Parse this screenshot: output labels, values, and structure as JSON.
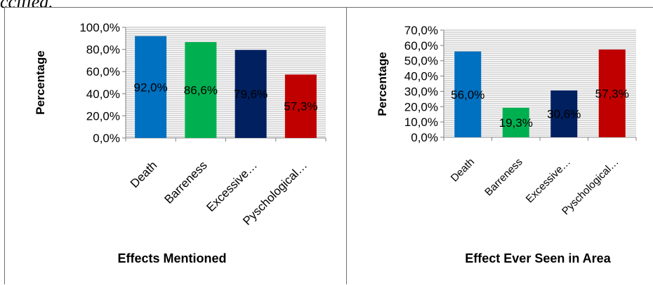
{
  "top_text": "ccified.",
  "chart_data": [
    {
      "type": "bar",
      "title": "",
      "xlabel": "Effects Mentioned",
      "ylabel": "Percentage",
      "categories": [
        "Death",
        "Barreness",
        "Excessive…",
        "Pyschological…"
      ],
      "values": [
        92.0,
        86.6,
        79.6,
        57.3
      ],
      "data_labels": [
        "92,0%",
        "86,6%",
        "79,6%",
        "57,3%"
      ],
      "bar_colors": [
        "#0070c0",
        "#00b050",
        "#002060",
        "#c00000"
      ],
      "ylim": [
        0,
        100
      ],
      "y_ticks": [
        0,
        20,
        40,
        60,
        80,
        100
      ],
      "y_tick_labels": [
        "0,0%",
        "20,0%",
        "40,0%",
        "60,0%",
        "80,0%",
        "100,0%"
      ],
      "grid": true,
      "legend": "none"
    },
    {
      "type": "bar",
      "title": "",
      "xlabel": "Effect Ever Seen in Area",
      "ylabel": "Percentage",
      "categories": [
        "Death",
        "Barreness",
        "Excessive…",
        "Pyschological…"
      ],
      "values": [
        56.0,
        19.3,
        30.6,
        57.3
      ],
      "data_labels": [
        "56,0%",
        "19,3%",
        "30,6%",
        "57,3%"
      ],
      "bar_colors": [
        "#0070c0",
        "#00b050",
        "#002060",
        "#c00000"
      ],
      "ylim": [
        0,
        70
      ],
      "y_ticks": [
        0,
        10,
        20,
        30,
        40,
        50,
        60,
        70
      ],
      "y_tick_labels": [
        "0,0%",
        "10,0%",
        "20,0%",
        "30,0%",
        "40,0%",
        "50,0%",
        "60,0%",
        "70,0%"
      ],
      "grid": true,
      "legend": "none"
    }
  ]
}
